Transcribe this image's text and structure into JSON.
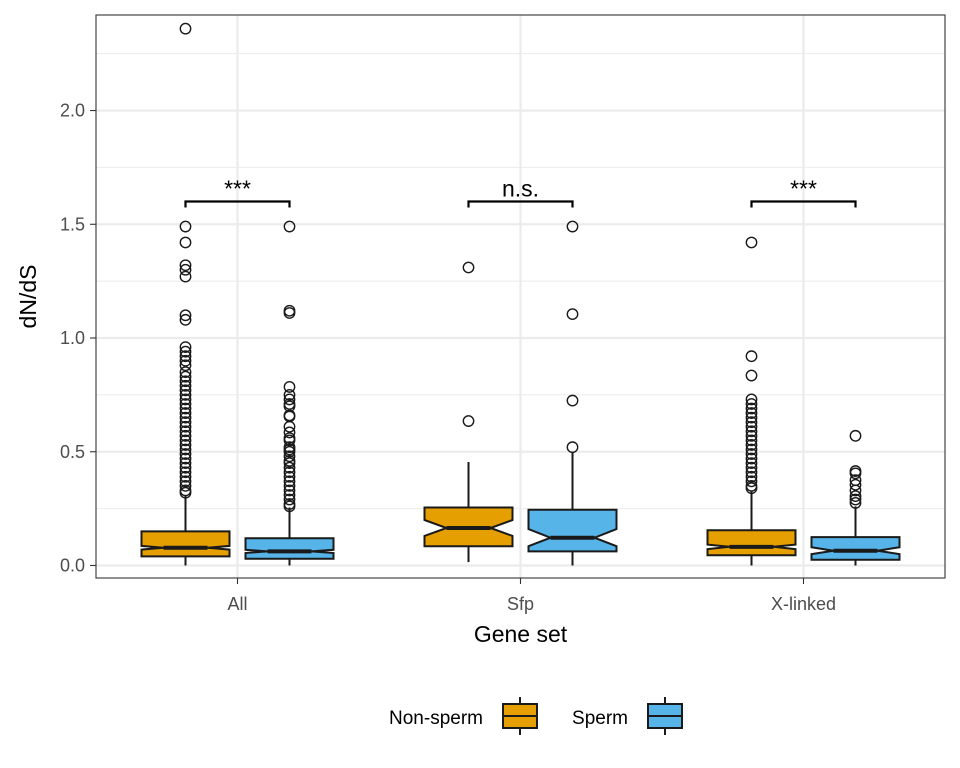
{
  "chart_data": {
    "type": "boxplot",
    "notched": true,
    "xlabel": "Gene set",
    "ylabel": "dN/dS",
    "categories": [
      "All",
      "Sfp",
      "X-linked"
    ],
    "ylim": [
      -0.055,
      2.42
    ],
    "yticks": [
      0.0,
      0.5,
      1.0,
      1.5,
      2.0
    ],
    "yticklabels": [
      "0.0",
      "0.5",
      "1.0",
      "1.5",
      "2.0"
    ],
    "grid": true,
    "legend": {
      "position": "bottom",
      "entries": [
        {
          "label": "Non-sperm",
          "color": "#E69F00"
        },
        {
          "label": "Sperm",
          "color": "#56B4E9"
        }
      ]
    },
    "series": [
      {
        "name": "Non-sperm",
        "color": "#E69F00",
        "boxes": [
          {
            "category": "All",
            "min": 0.0,
            "q1": 0.04,
            "median": 0.078,
            "q3": 0.15,
            "max": 0.31,
            "notch": [
              0.07,
              0.086
            ],
            "outliers": [
              2.36,
              1.49,
              1.42,
              1.32,
              1.3,
              1.27,
              1.1,
              1.08,
              0.96,
              0.94,
              0.92,
              0.9,
              0.88,
              0.85,
              0.83,
              0.81,
              0.79,
              0.77,
              0.75,
              0.73,
              0.71,
              0.69,
              0.67,
              0.65,
              0.63,
              0.61,
              0.59,
              0.57,
              0.55,
              0.53,
              0.51,
              0.49,
              0.47,
              0.45,
              0.43,
              0.41,
              0.39,
              0.37,
              0.35,
              0.33,
              0.32
            ]
          },
          {
            "category": "Sfp",
            "min": 0.015,
            "q1": 0.085,
            "median": 0.165,
            "q3": 0.255,
            "max": 0.455,
            "notch": [
              0.13,
              0.2
            ],
            "outliers": [
              1.31,
              0.635
            ]
          },
          {
            "category": "X-linked",
            "min": 0.0,
            "q1": 0.045,
            "median": 0.082,
            "q3": 0.155,
            "max": 0.33,
            "notch": [
              0.072,
              0.092
            ],
            "outliers": [
              1.42,
              0.92,
              0.835,
              0.73,
              0.71,
              0.69,
              0.67,
              0.65,
              0.63,
              0.61,
              0.59,
              0.57,
              0.55,
              0.53,
              0.51,
              0.49,
              0.47,
              0.45,
              0.43,
              0.41,
              0.39,
              0.37,
              0.35,
              0.34
            ]
          }
        ]
      },
      {
        "name": "Sperm",
        "color": "#56B4E9",
        "boxes": [
          {
            "category": "All",
            "min": 0.0,
            "q1": 0.03,
            "median": 0.062,
            "q3": 0.12,
            "max": 0.255,
            "notch": [
              0.055,
              0.069
            ],
            "outliers": [
              1.49,
              1.12,
              1.11,
              0.785,
              0.75,
              0.73,
              0.71,
              0.7,
              0.66,
              0.655,
              0.61,
              0.585,
              0.56,
              0.55,
              0.52,
              0.51,
              0.5,
              0.48,
              0.46,
              0.45,
              0.43,
              0.41,
              0.39,
              0.37,
              0.35,
              0.33,
              0.31,
              0.29,
              0.27,
              0.26
            ]
          },
          {
            "category": "Sfp",
            "min": 0.0,
            "q1": 0.062,
            "median": 0.122,
            "q3": 0.245,
            "max": 0.5,
            "notch": [
              0.085,
              0.16
            ],
            "outliers": [
              1.49,
              1.105,
              0.725,
              0.52
            ]
          },
          {
            "category": "X-linked",
            "min": 0.0,
            "q1": 0.025,
            "median": 0.065,
            "q3": 0.125,
            "max": 0.26,
            "notch": [
              0.05,
              0.08
            ],
            "outliers": [
              0.57,
              0.415,
              0.405,
              0.375,
              0.355,
              0.33,
              0.305,
              0.29,
              0.275
            ]
          }
        ]
      }
    ],
    "annotations": [
      {
        "category": "All",
        "label": "***",
        "y": 1.6
      },
      {
        "category": "Sfp",
        "label": "n.s.",
        "y": 1.6
      },
      {
        "category": "X-linked",
        "label": "***",
        "y": 1.6
      }
    ]
  }
}
